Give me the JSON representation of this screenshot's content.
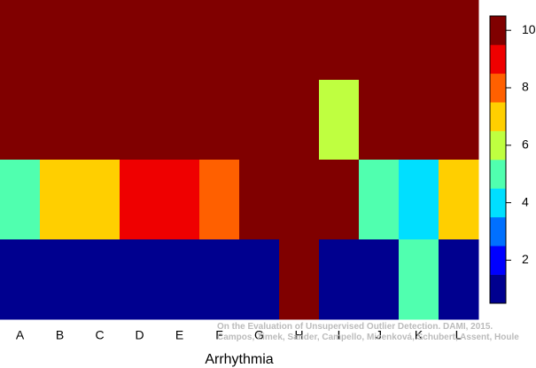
{
  "chart_data": {
    "type": "heatmap",
    "categories": [
      "A",
      "B",
      "C",
      "D",
      "E",
      "F",
      "G",
      "H",
      "I",
      "J",
      "K",
      "L"
    ],
    "values": [
      [
        10,
        10,
        10,
        10,
        10,
        10,
        10,
        10,
        10,
        10,
        10,
        10
      ],
      [
        10,
        10,
        10,
        10,
        10,
        10,
        10,
        10,
        6,
        10,
        10,
        10
      ],
      [
        5,
        7,
        7,
        9,
        9,
        8,
        10,
        10,
        10,
        5,
        4,
        7
      ],
      [
        1,
        1,
        1,
        1,
        1,
        1,
        1,
        10,
        1,
        1,
        5,
        1
      ]
    ],
    "xlabel": "Arrhythmia",
    "levels": [
      1,
      2,
      3,
      4,
      5,
      6,
      7,
      8,
      9,
      10
    ],
    "colors": [
      "#00008f",
      "#0000ff",
      "#0070ff",
      "#00dfff",
      "#50ffaf",
      "#bfff40",
      "#ffcf00",
      "#ff6000",
      "#ef0000",
      "#800000"
    ],
    "zlim": [
      0.5,
      10.5
    ],
    "zticks": [
      2,
      4,
      6,
      8,
      10
    ],
    "annotations": [
      "On the Evaluation of Unsupervised Outlier Detection. DAMI, 2015.",
      "Campos, Zimek, Sander, Campello, Micenková, Schubert, Assent, Houle"
    ]
  }
}
